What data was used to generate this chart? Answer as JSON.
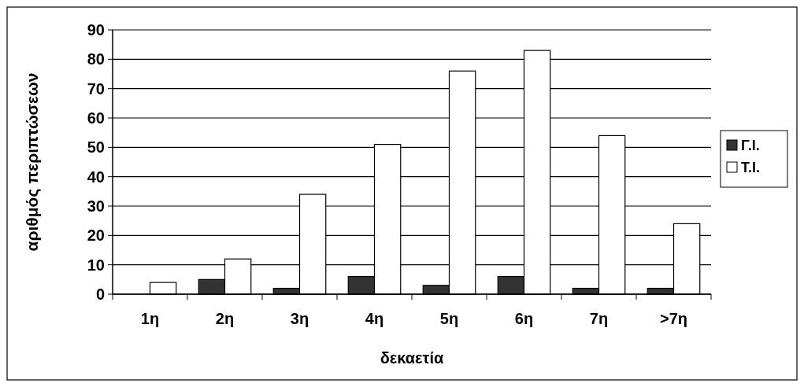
{
  "chart_data": {
    "type": "bar",
    "xlabel": "δεκαετία",
    "ylabel": "αριθμός περιπτώσεων",
    "categories": [
      "1η",
      "2η",
      "3η",
      "4η",
      "5η",
      "6η",
      "7η",
      ">7η"
    ],
    "series": [
      {
        "name": "Γ.Ι.",
        "color": "#333333",
        "values": [
          0,
          5,
          2,
          6,
          3,
          6,
          2,
          2
        ]
      },
      {
        "name": "Τ.Ι.",
        "color": "#ffffff",
        "values": [
          4,
          12,
          34,
          51,
          76,
          83,
          54,
          24
        ]
      }
    ],
    "ylim": [
      0,
      90
    ],
    "yticks": [
      0,
      10,
      20,
      30,
      40,
      50,
      60,
      70,
      80,
      90
    ],
    "grid": "y",
    "legend": "right"
  }
}
